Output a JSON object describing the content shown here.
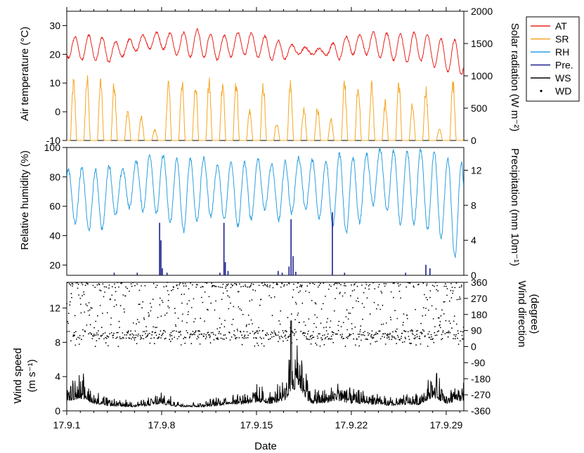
{
  "chart_data": {
    "type": "line",
    "xlabel": "Date",
    "x_ticks": [
      "17.9.1",
      "17.9.8",
      "17.9.15",
      "17.9.22",
      "17.9.29"
    ],
    "x_range_days": [
      1,
      30.3
    ],
    "legend": {
      "placement": "top-right",
      "entries": [
        {
          "name": "AT",
          "color": "#e8231d",
          "style": "line"
        },
        {
          "name": "SR",
          "color": "#f5a623",
          "style": "line"
        },
        {
          "name": "RH",
          "color": "#2a9fe0",
          "style": "line"
        },
        {
          "name": "Pre.",
          "color": "#1a1f8c",
          "style": "line"
        },
        {
          "name": "WS",
          "color": "#000000",
          "style": "line"
        },
        {
          "name": "WD",
          "color": "#000000",
          "style": "dot"
        }
      ]
    },
    "panels": [
      {
        "id": "top",
        "left_axis": {
          "label": "Air temperature (°C)",
          "ylim": [
            -10,
            35
          ],
          "ticks": [
            "-10",
            "0",
            "10",
            "20",
            "30"
          ]
        },
        "right_axis": {
          "label": "Solar radiation (W m⁻²)",
          "ylim": [
            0,
            2000
          ],
          "ticks": [
            "0",
            "500",
            "1000",
            "1500",
            "2000"
          ]
        },
        "series": [
          {
            "name": "AT",
            "axis": "left",
            "daily_max": [
              26,
              26,
              27,
              25,
              24,
              26,
              27,
              28,
              27,
              28,
              29,
              26,
              27,
              28,
              27,
              26,
              24,
              23,
              22,
              22,
              25,
              27,
              27,
              28,
              27,
              27,
              28,
              26,
              25,
              25
            ],
            "daily_min": [
              19,
              18,
              18,
              17,
              19,
              21,
              22,
              22,
              20,
              19,
              19,
              18,
              19,
              20,
              19,
              18,
              18,
              20,
              20,
              20,
              18,
              20,
              20,
              19,
              18,
              17,
              18,
              16,
              14,
              13
            ]
          },
          {
            "name": "SR",
            "axis": "left_scaled_right",
            "daily_peak": [
              1000,
              1050,
              1000,
              980,
              520,
              390,
              180,
              1000,
              1000,
              1000,
              1000,
              1000,
              1000,
              500,
              930,
              300,
              980,
              520,
              560,
              360,
              1000,
              970,
              970,
              650,
              1000,
              590,
              890,
              190,
              1000,
              950
            ]
          }
        ]
      },
      {
        "id": "middle",
        "left_axis": {
          "label": "Relative humidity (%)",
          "ylim": [
            13,
            100
          ],
          "ticks": [
            "20",
            "40",
            "60",
            "80",
            "100"
          ]
        },
        "right_axis": {
          "label": "Precipitation (mm 10m⁻¹)",
          "ylim": [
            0,
            14.6
          ],
          "ticks": [
            "0",
            "4",
            "8",
            "12"
          ]
        },
        "series": [
          {
            "name": "RH",
            "axis": "left",
            "daily_max": [
              85,
              86,
              84,
              88,
              85,
              90,
              95,
              95,
              92,
              93,
              93,
              88,
              90,
              90,
              92,
              88,
              90,
              93,
              92,
              90,
              96,
              93,
              95,
              99,
              98,
              97,
              99,
              98,
              92,
              90
            ],
            "daily_min": [
              47,
              50,
              40,
              47,
              58,
              60,
              55,
              55,
              45,
              42,
              55,
              52,
              50,
              45,
              55,
              60,
              45,
              62,
              55,
              50,
              45,
              40,
              55,
              65,
              52,
              45,
              50,
              40,
              38,
              18
            ]
          },
          {
            "name": "Pre.",
            "axis": "right",
            "events": [
              {
                "day": 4.5,
                "value": 0.3
              },
              {
                "day": 6.2,
                "value": 0.3
              },
              {
                "day": 7.85,
                "value": 6.0
              },
              {
                "day": 7.95,
                "value": 4.0
              },
              {
                "day": 8.05,
                "value": 0.8
              },
              {
                "day": 8.4,
                "value": 0.3
              },
              {
                "day": 12.3,
                "value": 0.3
              },
              {
                "day": 12.6,
                "value": 6.0
              },
              {
                "day": 12.7,
                "value": 1.5
              },
              {
                "day": 12.9,
                "value": 0.5
              },
              {
                "day": 16.6,
                "value": 0.5
              },
              {
                "day": 16.9,
                "value": 0.3
              },
              {
                "day": 17.4,
                "value": 1.0
              },
              {
                "day": 17.55,
                "value": 6.4
              },
              {
                "day": 17.7,
                "value": 2.2
              },
              {
                "day": 17.9,
                "value": 0.4
              },
              {
                "day": 20.6,
                "value": 7.2
              },
              {
                "day": 21.5,
                "value": 0.3
              },
              {
                "day": 26.0,
                "value": 0.3
              },
              {
                "day": 27.5,
                "value": 1.2
              },
              {
                "day": 27.8,
                "value": 0.8
              }
            ]
          }
        ]
      },
      {
        "id": "bottom",
        "left_axis": {
          "label": "Wind speed (m s⁻¹)",
          "ylim": [
            0,
            15
          ],
          "ticks": [
            "0",
            "4",
            "8",
            "12"
          ]
        },
        "right_axis": {
          "label": "Wind direction (degree)",
          "ylim": [
            -360,
            360
          ],
          "ticks": [
            "360",
            "270",
            "180",
            "90",
            "0",
            "-90",
            "-180",
            "-270",
            "-360"
          ]
        },
        "series": [
          {
            "name": "WS",
            "axis": "left",
            "daily_max": [
              3.5,
              5.0,
              2.5,
              1.5,
              1.2,
              1.0,
              1.5,
              2.2,
              1.2,
              1.0,
              1.0,
              1.5,
              2.2,
              2.3,
              3.0,
              2.5,
              3.5,
              10.5,
              2.5,
              2.5,
              4.0,
              2.5,
              2.5,
              2.0,
              1.5,
              2.0,
              2.0,
              5.5,
              2.5,
              3.5
            ]
          },
          {
            "name": "WD",
            "axis": "right",
            "range": [
              0,
              360
            ]
          }
        ]
      }
    ]
  }
}
